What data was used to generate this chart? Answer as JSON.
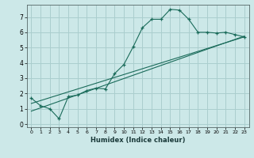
{
  "xlabel": "Humidex (Indice chaleur)",
  "bg_color": "#cce8e8",
  "grid_color": "#aacece",
  "line_color": "#1a6b5a",
  "xlim": [
    -0.5,
    23.5
  ],
  "ylim": [
    -0.2,
    7.8
  ],
  "xticks": [
    0,
    1,
    2,
    3,
    4,
    5,
    6,
    7,
    8,
    9,
    10,
    11,
    12,
    13,
    14,
    15,
    16,
    17,
    18,
    19,
    20,
    21,
    22,
    23
  ],
  "yticks": [
    0,
    1,
    2,
    3,
    4,
    5,
    6,
    7
  ],
  "curve1_x": [
    0,
    1,
    2,
    3,
    4,
    5,
    6,
    7,
    8,
    9,
    10,
    11,
    12,
    13,
    14,
    15,
    16,
    17,
    18,
    19,
    20,
    21,
    22,
    23
  ],
  "curve1_y": [
    1.7,
    1.2,
    1.0,
    0.35,
    1.8,
    1.9,
    2.2,
    2.35,
    2.3,
    3.3,
    3.9,
    5.05,
    6.3,
    6.85,
    6.85,
    7.5,
    7.45,
    6.85,
    6.0,
    6.0,
    5.95,
    6.0,
    5.85,
    5.7
  ],
  "line2_x": [
    0,
    23
  ],
  "line2_y": [
    0.85,
    5.75
  ],
  "line3_x": [
    0,
    23
  ],
  "line3_y": [
    1.35,
    5.7
  ]
}
